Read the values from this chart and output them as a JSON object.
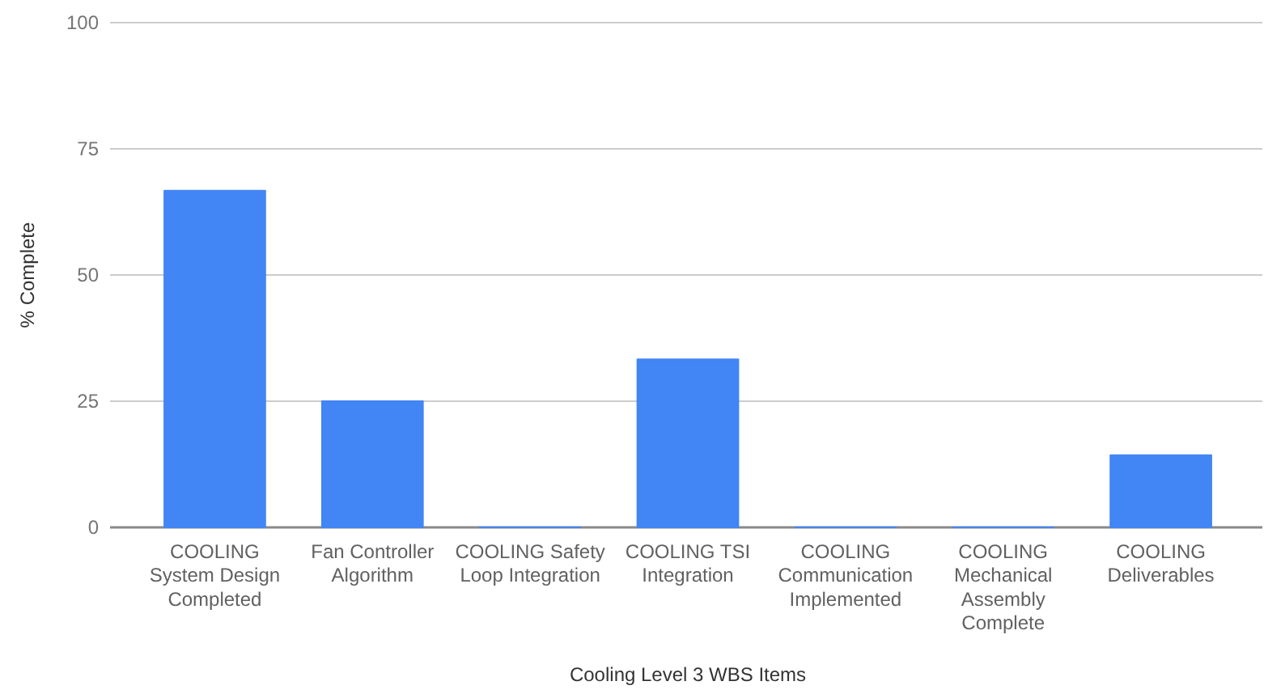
{
  "chart_data": {
    "type": "bar",
    "xlabel": "Cooling Level 3 WBS Items",
    "ylabel": "% Complete",
    "categories": [
      "COOLING System Design Completed",
      "Fan Controller Algorithm",
      "COOLING Safety Loop Integration",
      "COOLING TSI Integration",
      "COOLING Communication Implemented",
      "COOLING Mechanical Assembly Complete",
      "COOLING Deliverables"
    ],
    "values": [
      66.7,
      25,
      0,
      33.3,
      0,
      0,
      14.3
    ],
    "color": "#4285f4",
    "ylim": [
      0,
      100
    ],
    "yticks": [
      0,
      25,
      50,
      75,
      100
    ],
    "grid": "y"
  }
}
